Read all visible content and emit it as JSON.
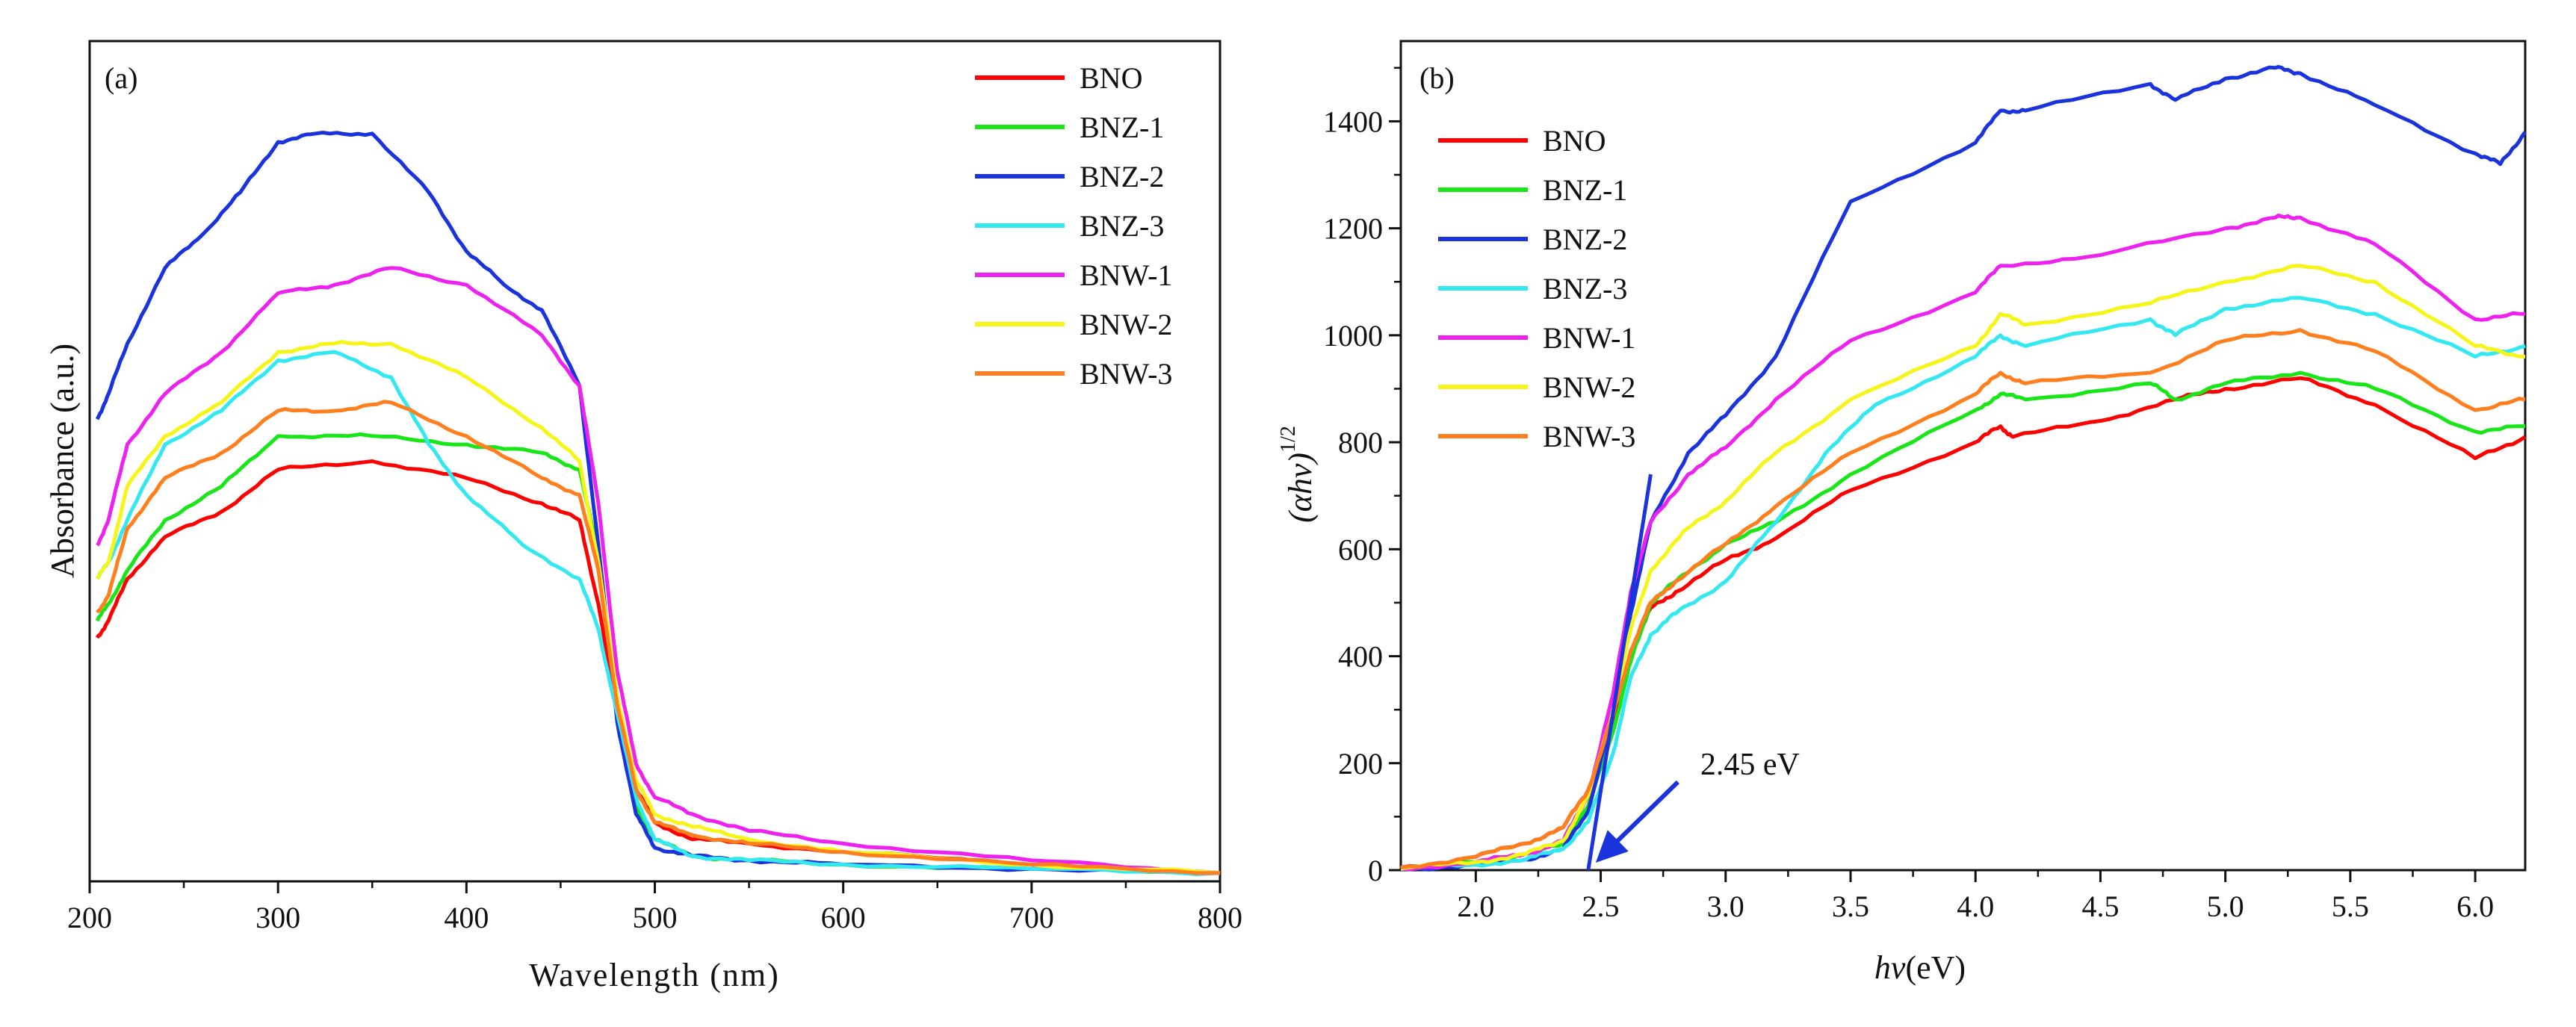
{
  "chart_data": [
    {
      "type": "line",
      "panel_label": "(a)",
      "xlabel": "Wavelength (nm)",
      "ylabel": "Absorbance (a.u.)",
      "xlim": [
        200,
        800
      ],
      "ylim": [
        0,
        1.0
      ],
      "xticks": [
        200,
        300,
        400,
        500,
        600,
        700,
        800
      ],
      "legend": {
        "position": "top-right"
      },
      "series": [
        {
          "name": "BNO",
          "color": "#ff0000",
          "x": [
            204,
            210,
            220,
            240,
            270,
            300,
            350,
            400,
            440,
            460,
            470,
            480,
            490,
            500,
            520,
            550,
            600,
            700,
            800
          ],
          "y": [
            0.29,
            0.31,
            0.36,
            0.41,
            0.44,
            0.49,
            0.5,
            0.48,
            0.45,
            0.43,
            0.33,
            0.2,
            0.11,
            0.07,
            0.05,
            0.045,
            0.035,
            0.02,
            0.01
          ]
        },
        {
          "name": "BNZ-1",
          "color": "#19e619",
          "x": [
            204,
            210,
            220,
            240,
            270,
            300,
            350,
            400,
            440,
            460,
            470,
            480,
            490,
            500,
            520,
            550,
            600,
            700,
            800
          ],
          "y": [
            0.31,
            0.33,
            0.37,
            0.43,
            0.47,
            0.53,
            0.53,
            0.52,
            0.51,
            0.49,
            0.39,
            0.21,
            0.09,
            0.05,
            0.03,
            0.025,
            0.02,
            0.015,
            0.01
          ]
        },
        {
          "name": "BNZ-2",
          "color": "#1a33dd",
          "x": [
            204,
            210,
            220,
            240,
            260,
            280,
            300,
            320,
            350,
            380,
            400,
            420,
            440,
            460,
            470,
            480,
            490,
            500,
            520,
            550,
            600,
            700,
            800
          ],
          "y": [
            0.55,
            0.58,
            0.64,
            0.73,
            0.77,
            0.82,
            0.88,
            0.89,
            0.89,
            0.82,
            0.75,
            0.71,
            0.68,
            0.59,
            0.4,
            0.19,
            0.08,
            0.04,
            0.03,
            0.025,
            0.02,
            0.015,
            0.01
          ]
        },
        {
          "name": "BNZ-3",
          "color": "#33e8f0",
          "x": [
            204,
            210,
            220,
            240,
            270,
            300,
            330,
            360,
            380,
            400,
            430,
            460,
            470,
            480,
            490,
            500,
            520,
            550,
            600,
            700,
            800
          ],
          "y": [
            0.36,
            0.38,
            0.43,
            0.52,
            0.56,
            0.62,
            0.63,
            0.6,
            0.52,
            0.46,
            0.4,
            0.36,
            0.3,
            0.2,
            0.1,
            0.05,
            0.03,
            0.025,
            0.02,
            0.015,
            0.01
          ]
        },
        {
          "name": "BNW-1",
          "color": "#ee22ee",
          "x": [
            204,
            210,
            220,
            240,
            270,
            300,
            330,
            360,
            400,
            440,
            460,
            470,
            480,
            490,
            500,
            520,
            550,
            600,
            700,
            800
          ],
          "y": [
            0.4,
            0.43,
            0.52,
            0.58,
            0.63,
            0.7,
            0.71,
            0.73,
            0.71,
            0.65,
            0.59,
            0.45,
            0.25,
            0.14,
            0.1,
            0.08,
            0.06,
            0.045,
            0.025,
            0.01
          ]
        },
        {
          "name": "BNW-2",
          "color": "#f5f51a",
          "x": [
            204,
            210,
            220,
            240,
            270,
            300,
            330,
            360,
            400,
            440,
            460,
            470,
            480,
            490,
            500,
            520,
            550,
            600,
            700,
            800
          ],
          "y": [
            0.36,
            0.38,
            0.47,
            0.53,
            0.57,
            0.63,
            0.64,
            0.64,
            0.6,
            0.54,
            0.5,
            0.38,
            0.22,
            0.12,
            0.08,
            0.065,
            0.05,
            0.035,
            0.02,
            0.01
          ]
        },
        {
          "name": "BNW-3",
          "color": "#ff7f1e",
          "x": [
            204,
            210,
            220,
            240,
            270,
            300,
            330,
            360,
            400,
            440,
            460,
            470,
            480,
            490,
            500,
            520,
            550,
            600,
            700,
            800
          ],
          "y": [
            0.32,
            0.34,
            0.42,
            0.48,
            0.51,
            0.56,
            0.56,
            0.57,
            0.53,
            0.48,
            0.46,
            0.37,
            0.21,
            0.11,
            0.07,
            0.055,
            0.045,
            0.035,
            0.02,
            0.01
          ]
        }
      ]
    },
    {
      "type": "line",
      "panel_label": "(b)",
      "xlabel_symbol": "hν",
      "xlabel_unit": "(eV)",
      "ylabel_main": "(αhν)",
      "ylabel_sup": "1/2",
      "xlim": [
        1.7,
        6.2
      ],
      "ylim": [
        0,
        1550
      ],
      "xticks": [
        2.0,
        2.5,
        3.0,
        3.5,
        4.0,
        4.5,
        5.0,
        5.5,
        6.0
      ],
      "yticks": [
        0,
        200,
        400,
        600,
        800,
        1000,
        1200,
        1400
      ],
      "legend": {
        "position": "top-left"
      },
      "annotation": {
        "text": "2.45 eV",
        "value": 2.45
      },
      "tangent": {
        "color": "#1a33dd",
        "x": [
          2.45,
          2.7
        ],
        "y": [
          0,
          740
        ]
      },
      "series": [
        {
          "name": "BNO",
          "color": "#ff0000",
          "x": [
            1.7,
            2.0,
            2.2,
            2.35,
            2.45,
            2.55,
            2.62,
            2.7,
            2.8,
            3.0,
            3.2,
            3.5,
            4.0,
            4.1,
            4.15,
            4.5,
            4.8,
            5.0,
            5.3,
            5.6,
            6.0,
            6.2
          ],
          "y": [
            5,
            25,
            50,
            80,
            150,
            280,
            400,
            490,
            520,
            580,
            620,
            710,
            800,
            830,
            810,
            840,
            880,
            900,
            920,
            870,
            770,
            810
          ]
        },
        {
          "name": "BNZ-1",
          "color": "#19e619",
          "x": [
            1.7,
            2.0,
            2.2,
            2.35,
            2.45,
            2.55,
            2.62,
            2.7,
            2.8,
            3.0,
            3.2,
            3.5,
            4.0,
            4.1,
            4.2,
            4.7,
            4.8,
            5.0,
            5.3,
            5.6,
            6.0,
            6.2
          ],
          "y": [
            3,
            15,
            30,
            50,
            120,
            260,
            390,
            500,
            540,
            610,
            650,
            740,
            860,
            890,
            880,
            910,
            880,
            910,
            930,
            900,
            820,
            830
          ]
        },
        {
          "name": "BNZ-2",
          "color": "#1a33dd",
          "x": [
            1.7,
            2.0,
            2.2,
            2.35,
            2.45,
            2.55,
            2.62,
            2.7,
            2.85,
            3.0,
            3.2,
            3.5,
            4.0,
            4.1,
            4.2,
            4.7,
            4.8,
            5.0,
            5.2,
            5.3,
            5.6,
            6.0,
            6.1,
            6.2
          ],
          "y": [
            2,
            10,
            20,
            40,
            110,
            300,
            480,
            650,
            780,
            850,
            960,
            1250,
            1360,
            1420,
            1420,
            1470,
            1440,
            1480,
            1500,
            1490,
            1430,
            1340,
            1320,
            1380
          ]
        },
        {
          "name": "BNZ-3",
          "color": "#33e8f0",
          "x": [
            1.7,
            2.0,
            2.2,
            2.35,
            2.45,
            2.55,
            2.62,
            2.7,
            2.8,
            3.0,
            3.2,
            3.4,
            3.6,
            4.0,
            4.1,
            4.2,
            4.7,
            4.8,
            5.0,
            5.3,
            5.6,
            6.0,
            6.2
          ],
          "y": [
            2,
            10,
            20,
            40,
            90,
            220,
            360,
            440,
            480,
            540,
            650,
            780,
            870,
            960,
            1000,
            980,
            1030,
            1000,
            1050,
            1070,
            1040,
            960,
            980
          ]
        },
        {
          "name": "BNW-1",
          "color": "#ee22ee",
          "x": [
            1.7,
            2.0,
            2.2,
            2.35,
            2.45,
            2.55,
            2.62,
            2.7,
            2.85,
            3.0,
            3.2,
            3.5,
            4.0,
            4.1,
            4.5,
            5.0,
            5.2,
            5.3,
            5.6,
            6.0,
            6.2
          ],
          "y": [
            3,
            15,
            30,
            55,
            140,
            330,
            520,
            650,
            740,
            790,
            880,
            990,
            1080,
            1130,
            1150,
            1200,
            1220,
            1220,
            1170,
            1030,
            1040
          ]
        },
        {
          "name": "BNW-2",
          "color": "#f5f51a",
          "x": [
            1.7,
            2.0,
            2.2,
            2.35,
            2.45,
            2.55,
            2.62,
            2.7,
            2.85,
            3.0,
            3.2,
            3.5,
            4.0,
            4.1,
            4.2,
            4.7,
            5.0,
            5.3,
            5.6,
            6.0,
            6.2
          ],
          "y": [
            3,
            15,
            30,
            55,
            140,
            300,
            450,
            560,
            640,
            690,
            780,
            880,
            980,
            1040,
            1020,
            1060,
            1100,
            1130,
            1100,
            980,
            960
          ]
        },
        {
          "name": "BNW-3",
          "color": "#ff7f1e",
          "x": [
            1.7,
            2.0,
            2.2,
            2.35,
            2.45,
            2.55,
            2.62,
            2.7,
            2.8,
            3.0,
            3.2,
            3.5,
            4.0,
            4.1,
            4.2,
            4.7,
            5.0,
            5.3,
            5.6,
            6.0,
            6.2
          ],
          "y": [
            5,
            25,
            50,
            80,
            150,
            290,
            410,
            500,
            540,
            610,
            680,
            780,
            890,
            930,
            910,
            930,
            990,
            1010,
            970,
            860,
            880
          ]
        }
      ]
    }
  ]
}
